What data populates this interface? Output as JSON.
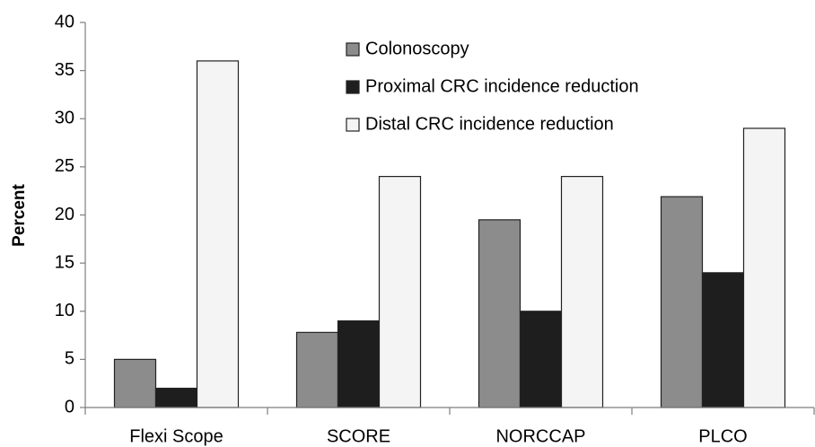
{
  "chart_data": {
    "type": "bar",
    "y_label": "Percent",
    "categories": [
      "Flexi Scope",
      "SCORE",
      "NORCCAP",
      "PLCO"
    ],
    "series": [
      {
        "name": "Colonoscopy",
        "color": "#8c8c8c",
        "values": [
          5,
          7.8,
          19.5,
          21.9
        ]
      },
      {
        "name": "Proximal CRC incidence reduction",
        "color": "#1e1e1e",
        "values": [
          2,
          9,
          10,
          14
        ]
      },
      {
        "name": "Distal CRC incidence reduction",
        "color": "#f4f4f4",
        "values": [
          36,
          24,
          24,
          29
        ]
      }
    ],
    "ylim": [
      0,
      40
    ],
    "yticks": [
      0,
      5,
      10,
      15,
      20,
      25,
      30,
      35,
      40
    ],
    "grid": false,
    "legend": "upper center"
  }
}
